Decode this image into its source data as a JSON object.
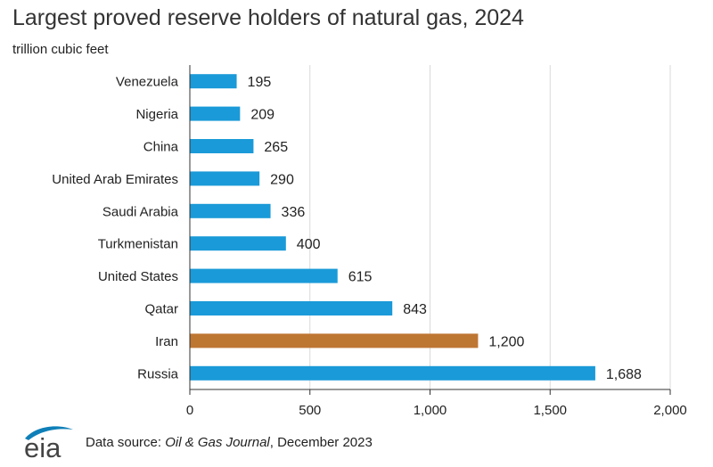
{
  "header": {
    "title": "Largest proved reserve holders of natural gas, 2024",
    "subtitle": "trillion cubic feet"
  },
  "footer": {
    "logo_text": "eia",
    "source_prefix": "Data source: ",
    "source_italic": "Oil & Gas Journal",
    "source_suffix": ", December 2023"
  },
  "colors": {
    "bar": "#1A9AD8",
    "highlight": "#BE7633",
    "gridline": "#D9D9D9",
    "axis": "#333333",
    "logo_swoosh": "#0F7FB8"
  },
  "chart_data": {
    "type": "bar",
    "orientation": "horizontal",
    "title": "Largest proved reserve holders of natural gas, 2024",
    "unit": "trillion cubic feet",
    "categories": [
      "Venezuela",
      "Nigeria",
      "China",
      "United Arab Emirates",
      "Saudi Arabia",
      "Turkmenistan",
      "United States",
      "Qatar",
      "Iran",
      "Russia"
    ],
    "values": [
      195,
      209,
      265,
      290,
      336,
      400,
      615,
      843,
      1200,
      1688
    ],
    "value_labels": [
      "195",
      "209",
      "265",
      "290",
      "336",
      "400",
      "615",
      "843",
      "1,200",
      "1,688"
    ],
    "highlight_category": "Iran",
    "xlim": [
      0,
      2000
    ],
    "xticks": [
      0,
      500,
      1000,
      1500,
      2000
    ],
    "xtick_labels": [
      "0",
      "500",
      "1,000",
      "1,500",
      "2,000"
    ],
    "grid": "vertical",
    "legend": "none"
  }
}
